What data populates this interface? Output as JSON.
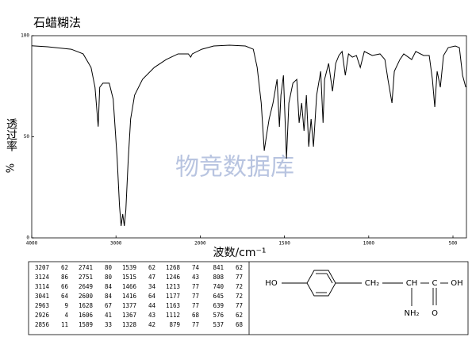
{
  "chart_data": {
    "type": "line",
    "title": "石蜡糊法",
    "ylabel": "透过率",
    "ylabel_unit": "%",
    "xlabel": "波数/cm⁻¹",
    "watermark": "物竞数据库",
    "x": [
      4000,
      3812,
      3531,
      3390,
      3296,
      3249,
      3211,
      3193,
      3155,
      3080,
      3033,
      2986,
      2958,
      2939,
      2920,
      2901,
      2883,
      2854,
      2826,
      2779,
      2685,
      2545,
      2404,
      2263,
      2141,
      2113,
      2094,
      1991,
      1920,
      1826,
      1732,
      1685,
      1662,
      1638,
      1620,
      1606,
      1591,
      1568,
      1544,
      1530,
      1521,
      1506,
      1488,
      1474,
      1450,
      1427,
      1413,
      1398,
      1384,
      1370,
      1356,
      1342,
      1328,
      1309,
      1285,
      1271,
      1262,
      1238,
      1215,
      1196,
      1177,
      1158,
      1139,
      1120,
      1097,
      1073,
      1050,
      1026,
      979,
      933,
      904,
      886,
      862,
      848,
      815,
      792,
      745,
      721,
      674,
      641,
      622,
      608,
      594,
      575,
      556,
      528,
      486,
      462,
      443,
      424
    ],
    "series": [
      {
        "color": "#000000",
        "values": [
          95,
          94.5,
          93.3,
          91,
          84.3,
          74.5,
          55,
          74.5,
          76.5,
          76.5,
          68.6,
          39.2,
          15.7,
          5.9,
          11.8,
          5.9,
          13.7,
          39.2,
          58.8,
          70.6,
          78.4,
          84.3,
          88.2,
          91,
          91,
          89.4,
          91,
          93.3,
          94.9,
          95.3,
          94.9,
          93.3,
          84.3,
          66.7,
          43.1,
          51,
          58.8,
          66.7,
          78.4,
          54.9,
          70.6,
          80.4,
          39.2,
          66.7,
          76.5,
          78.4,
          56.9,
          66.7,
          52.9,
          70.6,
          45.1,
          58.8,
          45.1,
          70.6,
          82.4,
          56.9,
          78.4,
          86.3,
          72.5,
          86.3,
          90.2,
          92.2,
          80.4,
          91,
          89.4,
          90.2,
          84.3,
          92.2,
          90.2,
          91,
          88.2,
          78.4,
          66.7,
          82.4,
          88.2,
          91,
          88.2,
          92.2,
          90.2,
          90.2,
          78.4,
          64.7,
          82.4,
          74.5,
          90.2,
          94.1,
          94.9,
          94.1,
          80.4,
          74.5
        ]
      }
    ],
    "xlim": [
      4000,
      420
    ],
    "xticks": [
      4000,
      3000,
      2000,
      1500,
      1000,
      500
    ],
    "ylim": [
      0,
      100
    ],
    "yticks": [
      0,
      50,
      100
    ]
  },
  "table": {
    "rows": [
      [
        "3207",
        "62",
        "2741",
        "80",
        "1539",
        "62",
        "1268",
        "74",
        "841",
        "62"
      ],
      [
        "3124",
        "86",
        "2751",
        "80",
        "1515",
        "47",
        "1246",
        "43",
        "808",
        "77"
      ],
      [
        "3114",
        "66",
        "2649",
        "84",
        "1466",
        "34",
        "1213",
        "77",
        "740",
        "72"
      ],
      [
        "3041",
        "64",
        "2600",
        "84",
        "1416",
        "64",
        "1177",
        "77",
        "645",
        "72"
      ],
      [
        "2963",
        "9",
        "1628",
        "67",
        "1377",
        "44",
        "1163",
        "77",
        "639",
        "77"
      ],
      [
        "2926",
        "4",
        "1606",
        "41",
        "1367",
        "43",
        "1112",
        "68",
        "576",
        "62"
      ],
      [
        "2856",
        "11",
        "1589",
        "33",
        "1328",
        "42",
        "879",
        "77",
        "537",
        "68"
      ]
    ]
  },
  "structure": {
    "labels": [
      "HO",
      "CH₂",
      "CH",
      "C",
      "OH",
      "NH₂",
      "O"
    ]
  }
}
